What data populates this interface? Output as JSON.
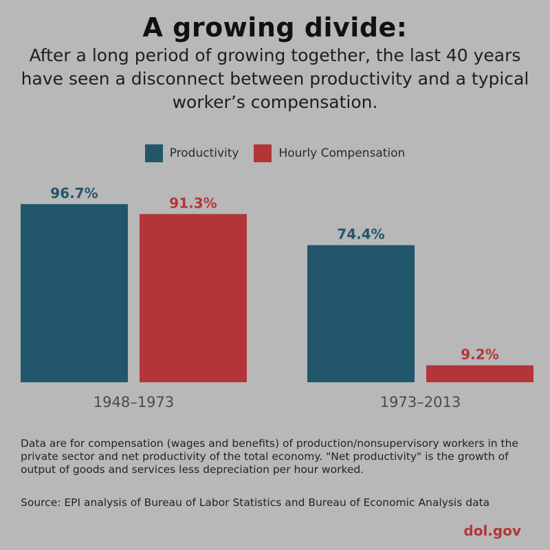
{
  "header": {
    "title": "A growing divide:",
    "subtitle": "After a long period of growing together, the last 40 years have seen a disconnect between productivity and a typical worker’s compensation."
  },
  "colors": {
    "productivity": "#22566b",
    "compensation": "#b43538",
    "axis_text": "#4a4a4a",
    "brand": "#b43538"
  },
  "chart_data": {
    "type": "bar",
    "title": "A growing divide:",
    "categories": [
      "1948–1973",
      "1973–2013"
    ],
    "series": [
      {
        "name": "Productivity",
        "values": [
          96.7,
          74.4
        ],
        "labels": [
          "96.7%",
          "74.4%"
        ]
      },
      {
        "name": "Hourly Compensation",
        "values": [
          91.3,
          9.2
        ],
        "labels": [
          "91.3%",
          "9.2%"
        ]
      }
    ],
    "xlabel": "",
    "ylabel": "",
    "ylim": [
      0,
      100
    ],
    "legend_position": "top-center",
    "grid": false
  },
  "footnote": "Data are for compensation (wages and benefits) of production/nonsupervisory workers in the private sector and net productivity of the total economy. \"Net productivity\" is the growth of output of goods and services less depreciation per hour worked.",
  "source": "Source: EPI analysis of Bureau of Labor Statistics and Bureau of Economic Analysis data",
  "brand": "dol.gov"
}
